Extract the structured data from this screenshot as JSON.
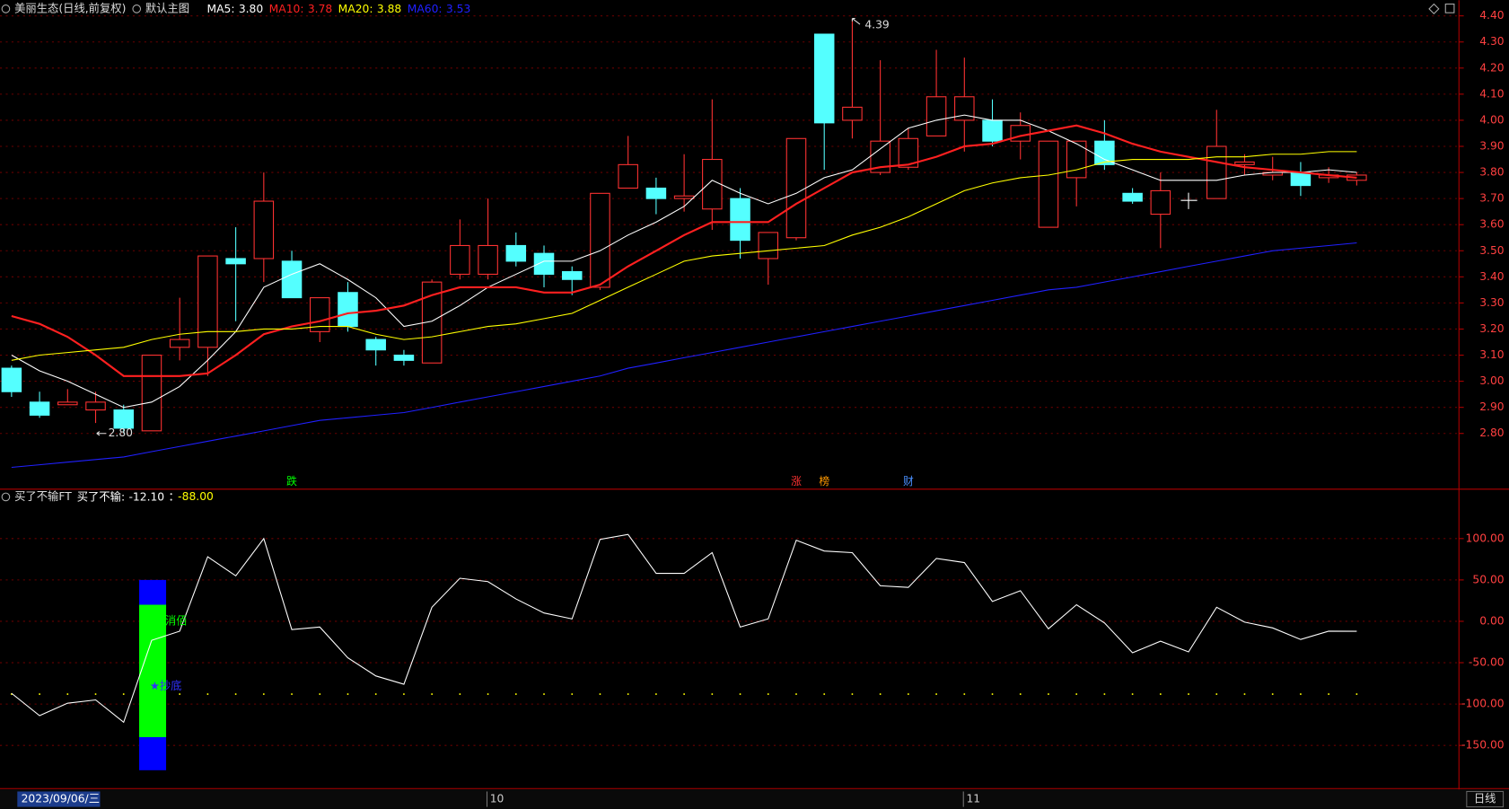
{
  "chart_data": [
    {
      "type": "candlestick",
      "title": "美丽生态(日线,前复权)",
      "subtitle": "默认主图",
      "open": [
        3.05,
        2.92,
        2.91,
        2.89,
        2.89,
        2.81,
        3.13,
        3.13,
        3.47,
        3.47,
        3.46,
        3.19,
        3.34,
        3.16,
        3.1,
        3.07,
        3.41,
        3.41,
        3.52,
        3.49,
        3.42,
        3.36,
        3.74,
        3.74,
        3.7,
        3.66,
        3.7,
        3.47,
        3.55,
        4.33,
        4.0,
        3.8,
        3.82,
        3.94,
        4.0,
        4.0,
        3.92,
        3.59,
        3.78,
        3.92,
        3.72,
        3.64,
        null,
        3.7,
        3.83,
        3.79,
        3.8,
        3.78,
        3.77
      ],
      "high": [
        3.06,
        2.96,
        2.97,
        2.96,
        2.91,
        3.1,
        3.32,
        3.48,
        3.59,
        3.8,
        3.5,
        3.32,
        3.38,
        3.17,
        3.12,
        3.39,
        3.62,
        3.7,
        3.57,
        3.52,
        3.44,
        3.72,
        3.94,
        3.78,
        3.87,
        4.08,
        3.74,
        3.57,
        3.93,
        4.33,
        4.39,
        4.23,
        3.97,
        4.27,
        4.24,
        4.08,
        4.03,
        3.92,
        3.92,
        4.0,
        3.74,
        3.8,
        null,
        4.04,
        3.87,
        3.86,
        3.84,
        3.82,
        3.8
      ],
      "low": [
        2.94,
        2.86,
        2.91,
        2.84,
        2.8,
        2.81,
        3.08,
        3.02,
        3.23,
        3.38,
        3.32,
        3.15,
        3.19,
        3.06,
        3.06,
        3.07,
        3.39,
        3.39,
        3.44,
        3.36,
        3.33,
        3.35,
        3.74,
        3.64,
        3.65,
        3.58,
        3.47,
        3.37,
        3.54,
        3.81,
        3.93,
        3.79,
        3.81,
        3.94,
        3.88,
        3.9,
        3.85,
        3.59,
        3.67,
        3.81,
        3.68,
        3.51,
        null,
        3.7,
        3.79,
        3.77,
        3.71,
        3.76,
        3.75
      ],
      "close": [
        2.96,
        2.87,
        2.92,
        2.92,
        2.82,
        3.1,
        3.16,
        3.48,
        3.45,
        3.69,
        3.32,
        3.32,
        3.21,
        3.12,
        3.08,
        3.38,
        3.52,
        3.52,
        3.46,
        3.41,
        3.39,
        3.72,
        3.83,
        3.7,
        3.71,
        3.85,
        3.54,
        3.57,
        3.93,
        3.99,
        4.05,
        3.92,
        3.93,
        4.09,
        4.09,
        3.92,
        3.98,
        3.92,
        3.92,
        3.83,
        3.69,
        3.73,
        null,
        3.9,
        3.84,
        3.8,
        3.75,
        3.79,
        3.79
      ],
      "up_color": "#ff3232",
      "down_color": "#54ffff",
      "series": [
        {
          "name": "MA5:",
          "value_label": "3.80",
          "color": "#ffffff",
          "values": [
            3.1,
            3.04,
            3.0,
            2.95,
            2.9,
            2.92,
            2.98,
            3.08,
            3.19,
            3.36,
            3.41,
            3.45,
            3.39,
            3.32,
            3.21,
            3.23,
            3.29,
            3.36,
            3.41,
            3.46,
            3.46,
            3.5,
            3.56,
            3.61,
            3.67,
            3.77,
            3.72,
            3.68,
            3.72,
            3.78,
            3.81,
            3.89,
            3.97,
            4.0,
            4.02,
            4.0,
            4.0,
            3.96,
            3.91,
            3.85,
            3.81,
            3.77,
            3.77,
            3.77,
            3.79,
            3.8,
            3.8,
            3.81,
            3.8
          ]
        },
        {
          "name": "MA10:",
          "value_label": "3.78",
          "color": "#ff2020",
          "values": [
            3.25,
            3.22,
            3.17,
            3.1,
            3.02,
            3.02,
            3.02,
            3.03,
            3.1,
            3.18,
            3.21,
            3.23,
            3.26,
            3.27,
            3.29,
            3.33,
            3.36,
            3.36,
            3.36,
            3.34,
            3.34,
            3.37,
            3.44,
            3.5,
            3.56,
            3.61,
            3.61,
            3.61,
            3.68,
            3.74,
            3.8,
            3.82,
            3.83,
            3.86,
            3.9,
            3.91,
            3.94,
            3.96,
            3.98,
            3.95,
            3.91,
            3.88,
            3.86,
            3.84,
            3.82,
            3.81,
            3.8,
            3.79,
            3.78
          ]
        },
        {
          "name": "MA20:",
          "value_label": "3.88",
          "color": "#ffff00",
          "values": [
            3.08,
            3.1,
            3.11,
            3.12,
            3.13,
            3.16,
            3.18,
            3.19,
            3.19,
            3.2,
            3.2,
            3.21,
            3.21,
            3.18,
            3.16,
            3.17,
            3.19,
            3.21,
            3.22,
            3.24,
            3.26,
            3.31,
            3.36,
            3.41,
            3.46,
            3.48,
            3.49,
            3.5,
            3.51,
            3.52,
            3.56,
            3.59,
            3.63,
            3.68,
            3.73,
            3.76,
            3.78,
            3.79,
            3.81,
            3.84,
            3.85,
            3.85,
            3.85,
            3.86,
            3.86,
            3.87,
            3.87,
            3.88,
            3.88
          ]
        },
        {
          "name": "MA60:",
          "value_label": "3.53",
          "color": "#2020ff",
          "values": [
            2.67,
            2.68,
            2.69,
            2.7,
            2.71,
            2.73,
            2.75,
            2.77,
            2.79,
            2.81,
            2.83,
            2.85,
            2.86,
            2.87,
            2.88,
            2.9,
            2.92,
            2.94,
            2.96,
            2.98,
            3.0,
            3.02,
            3.05,
            3.07,
            3.09,
            3.11,
            3.13,
            3.15,
            3.17,
            3.19,
            3.21,
            3.23,
            3.25,
            3.27,
            3.29,
            3.31,
            3.33,
            3.35,
            3.36,
            3.38,
            3.4,
            3.42,
            3.44,
            3.46,
            3.48,
            3.5,
            3.51,
            3.52,
            3.53
          ]
        }
      ],
      "ylim": [
        2.59,
        4.46
      ],
      "yticks": [
        {
          "value": 2.8,
          "label": "2.80"
        },
        {
          "value": 2.9,
          "label": "2.90"
        },
        {
          "value": 3.0,
          "label": "3.00"
        },
        {
          "value": 3.1,
          "label": "3.10"
        },
        {
          "value": 3.2,
          "label": "3.20"
        },
        {
          "value": 3.3,
          "label": "3.30"
        },
        {
          "value": 3.4,
          "label": "3.40"
        },
        {
          "value": 3.5,
          "label": "3.50"
        },
        {
          "value": 3.6,
          "label": "3.60"
        },
        {
          "value": 3.7,
          "label": "3.70"
        },
        {
          "value": 3.8,
          "label": "3.80"
        },
        {
          "value": 3.9,
          "label": "3.90"
        },
        {
          "value": 4.0,
          "label": "4.00"
        },
        {
          "value": 4.1,
          "label": "4.10"
        },
        {
          "value": 4.2,
          "label": "4.20"
        },
        {
          "value": 4.3,
          "label": "4.30"
        },
        {
          "value": 4.4,
          "label": "4.40"
        }
      ],
      "grid": true,
      "annotations": [
        {
          "index": 4,
          "value": 2.8,
          "label": "2.80"
        },
        {
          "index": 30,
          "value": 4.39,
          "label": "4.39"
        }
      ],
      "events": [
        {
          "index": 10,
          "label": "跌",
          "color": "#00ff00"
        },
        {
          "index": 28,
          "label": "涨",
          "color": "#ff3232"
        },
        {
          "index": 29,
          "label": "榜",
          "color": "#ff9900"
        },
        {
          "index": 32,
          "label": "财",
          "color": "#4a90ff"
        }
      ]
    },
    {
      "type": "line",
      "title": "买了不输FT",
      "series": [
        {
          "name": "买了不输:",
          "value_label": "-12.10",
          "color": "#ffffff",
          "values": [
            -87,
            -114,
            -99,
            -95,
            -122,
            -23,
            -12,
            78,
            55,
            100,
            -10,
            -7,
            -44,
            -66,
            -76,
            17,
            52,
            48,
            27,
            10,
            3,
            99,
            105,
            58,
            58,
            83,
            -7,
            3,
            98,
            85,
            83,
            43,
            41,
            76,
            71,
            24,
            37,
            -9,
            20,
            -2,
            -38,
            -24,
            -37,
            17,
            -1,
            -8,
            -22,
            -12,
            -12.1
          ]
        }
      ],
      "reference": {
        "value": -88,
        "value_label": "-88.00",
        "color": "#ffff00"
      },
      "signal": {
        "index": 5,
        "segments": [
          {
            "range": [
              20,
              50
            ],
            "color": "#0000ff"
          },
          {
            "range": [
              -140,
              20
            ],
            "color": "#00ff00"
          },
          {
            "range": [
              -180,
              -140
            ],
            "color": "#0000ff"
          }
        ],
        "labels": [
          {
            "text": "消佰",
            "value": 0,
            "color": "#00ff00"
          },
          {
            "text": "★抄底",
            "value": -79,
            "color": "#3030ff"
          }
        ]
      },
      "ylim": [
        -201,
        155
      ],
      "yticks": [
        {
          "value": -150,
          "label": "-150.00"
        },
        {
          "value": -100,
          "label": "-100.00"
        },
        {
          "value": -50,
          "label": "-50.00"
        },
        {
          "value": 0,
          "label": "0.00"
        },
        {
          "value": 50,
          "label": "50.00"
        },
        {
          "value": 100,
          "label": "100.00"
        }
      ],
      "grid": true,
      "xlabels": [
        {
          "index": 17,
          "label": "10"
        },
        {
          "index": 34,
          "label": "11"
        }
      ],
      "cursor_date": "2023/09/06/三",
      "period": "日线"
    }
  ]
}
